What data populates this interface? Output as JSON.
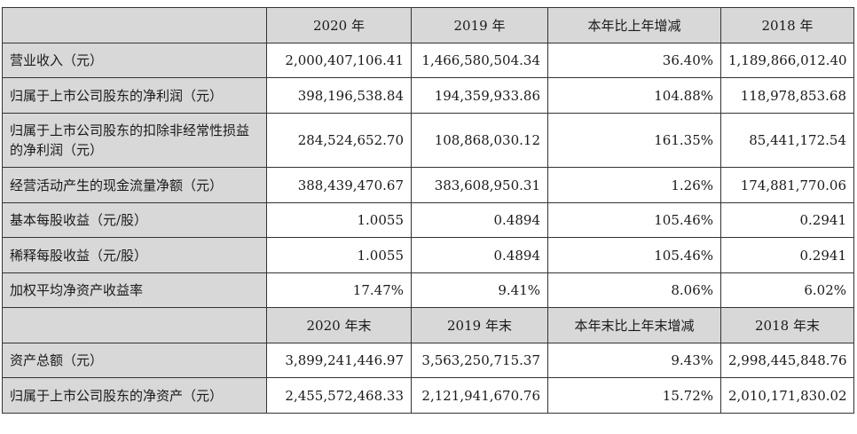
{
  "header1": [
    "",
    "2020 年",
    "2019 年",
    "本年比上年增减",
    "2018 年"
  ],
  "rows1": [
    {
      "label": "营业收入（元）",
      "values": [
        "2,000,407,106.41",
        "1,466,580,504.34",
        "36.40%",
        "1,189,866,012.40"
      ]
    },
    {
      "label": "归属于上市公司股东的净利润（元）",
      "values": [
        "398,196,538.84",
        "194,359,933.86",
        "104.88%",
        "118,978,853.68"
      ]
    },
    {
      "label": "归属于上市公司股东的扣除非经常性损益的净利润（元）",
      "values": [
        "284,524,652.70",
        "108,868,030.12",
        "161.35%",
        "85,441,172.54"
      ]
    },
    {
      "label": "经营活动产生的现金流量净额（元）",
      "values": [
        "388,439,470.67",
        "383,608,950.31",
        "1.26%",
        "174,881,770.06"
      ]
    },
    {
      "label": "基本每股收益（元/股）",
      "values": [
        "1.0055",
        "0.4894",
        "105.46%",
        "0.2941"
      ]
    },
    {
      "label": "稀释每股收益（元/股）",
      "values": [
        "1.0055",
        "0.4894",
        "105.46%",
        "0.2941"
      ]
    },
    {
      "label": "加权平均净资产收益率",
      "values": [
        "17.47%",
        "9.41%",
        "8.06%",
        "6.02%"
      ]
    }
  ],
  "header2": [
    "",
    "2020 年末",
    "2019 年末",
    "本年末比上年末增减",
    "2018 年末"
  ],
  "rows2": [
    {
      "label": "资产总额（元）",
      "values": [
        "3,899,241,446.97",
        "3,563,250,715.37",
        "9.43%",
        "2,998,445,848.76"
      ]
    },
    {
      "label": "归属于上市公司股东的净资产（元）",
      "values": [
        "2,455,572,468.33",
        "2,121,941,670.76",
        "15.72%",
        "2,010,171,830.02"
      ]
    }
  ]
}
